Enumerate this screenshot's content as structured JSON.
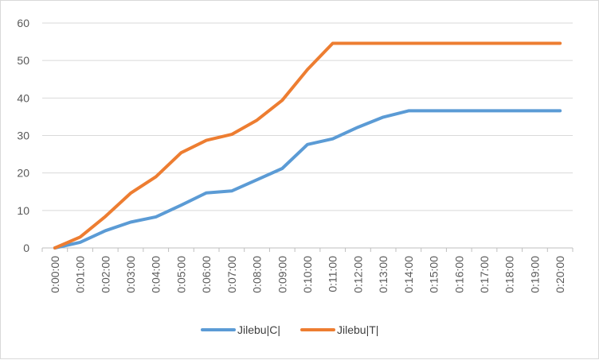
{
  "chart_data": {
    "type": "line",
    "title": "",
    "xlabel": "",
    "ylabel": "",
    "ylim": [
      0,
      60
    ],
    "yticks": [
      "0",
      "10",
      "20",
      "30",
      "40",
      "50",
      "60"
    ],
    "grid": true,
    "legend_position": "bottom",
    "categories": [
      "0:00:00",
      "0:01:00",
      "0:02:00",
      "0:03:00",
      "0:04:00",
      "0:05:00",
      "0:06:00",
      "0:07:00",
      "0:08:00",
      "0:09:00",
      "0:10:00",
      "0:11:00",
      "0:12:00",
      "0:13:00",
      "0:14:00",
      "0:15:00",
      "0:16:00",
      "0:17:00",
      "0:18:00",
      "0:19:00",
      "0:20:00"
    ],
    "series": [
      {
        "name": "Jilebu|C|",
        "color": "#5b9bd5",
        "values": [
          0,
          1.5,
          4.6,
          6.9,
          8.3,
          11.4,
          14.7,
          15.2,
          18.2,
          21.2,
          27.6,
          29.1,
          32.2,
          34.9,
          36.6,
          36.6,
          36.6,
          36.6,
          36.6,
          36.6,
          36.6
        ]
      },
      {
        "name": "Jilebu|T|",
        "color": "#ed7d31",
        "values": [
          0,
          2.9,
          8.4,
          14.6,
          19.0,
          25.4,
          28.7,
          30.3,
          34.1,
          39.4,
          47.6,
          54.6,
          54.6,
          54.6,
          54.6,
          54.6,
          54.6,
          54.6,
          54.6,
          54.6,
          54.6
        ]
      }
    ]
  }
}
